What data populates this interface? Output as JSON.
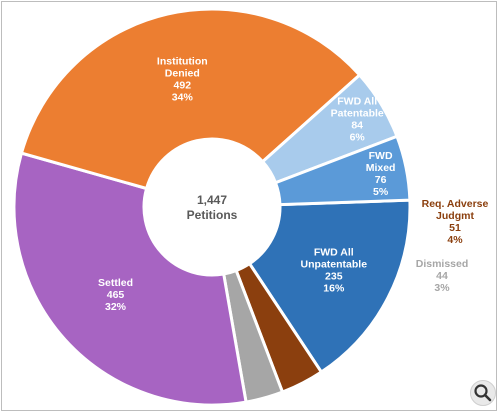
{
  "chart_data": {
    "type": "pie",
    "title": "",
    "center_label": {
      "value": "1,447",
      "text": "Petitions"
    },
    "start_angle_deg": -2,
    "slices": [
      {
        "label_lines": [
          "FWD All",
          "Unpatentable"
        ],
        "value": "235",
        "percent": "16%",
        "color": "#2f72b7",
        "label_color": "#ffffff"
      },
      {
        "label_lines": [
          "Req. Adverse",
          "Judgmt"
        ],
        "value": "51",
        "percent": "4%",
        "color": "#8b3f0e",
        "label_color": "#8b3f0e"
      },
      {
        "label_lines": [
          "Dismissed"
        ],
        "value": "44",
        "percent": "3%",
        "color": "#a6a6a6",
        "label_color": "#a6a6a6"
      },
      {
        "label_lines": [
          "Settled"
        ],
        "value": "465",
        "percent": "32%",
        "color": "#a764c2",
        "label_color": "#ffffff"
      },
      {
        "label_lines": [
          "Institution",
          "Denied"
        ],
        "value": "492",
        "percent": "34%",
        "color": "#ec7e31",
        "label_color": "#ffffff"
      },
      {
        "label_lines": [
          "FWD All",
          "Patentable"
        ],
        "value": "84",
        "percent": "6%",
        "color": "#a8cbec",
        "label_color": "#ffffff"
      },
      {
        "label_lines": [
          "FWD",
          "Mixed"
        ],
        "value": "76",
        "percent": "5%",
        "color": "#5b9ad8",
        "label_color": "#ffffff"
      }
    ]
  },
  "controls": {
    "zoom_icon": "magnifier-icon"
  }
}
